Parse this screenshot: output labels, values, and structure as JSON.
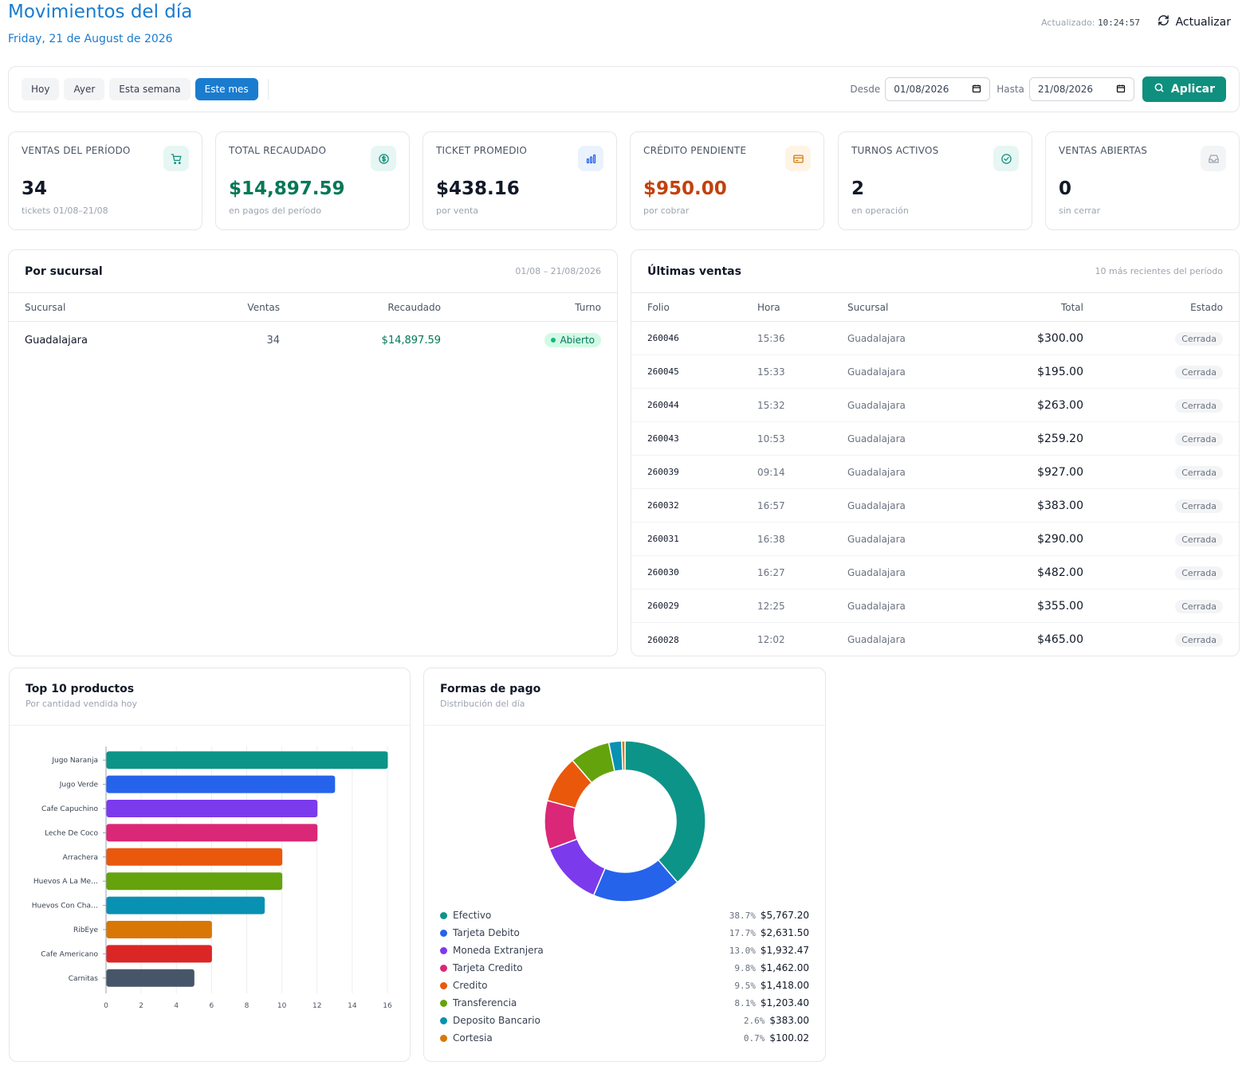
{
  "header": {
    "title": "Movimientos del día",
    "date": "Friday, 21 de August de 2026",
    "updated_label": "Actualizado:",
    "updated_time": "10:24:57",
    "refresh_label": "Actualizar"
  },
  "filters": {
    "presets": [
      {
        "label": "Hoy",
        "active": false
      },
      {
        "label": "Ayer",
        "active": false
      },
      {
        "label": "Esta semana",
        "active": false
      },
      {
        "label": "Este mes",
        "active": true
      }
    ],
    "from_label": "Desde",
    "from_value": "01/08/2026",
    "to_label": "Hasta",
    "to_value": "21/08/2026",
    "apply_label": "Aplicar"
  },
  "kpis": [
    {
      "label": "VENTAS DEL PERÍODO",
      "value": "34",
      "sub": "tickets 01/08–21/08",
      "icon": "cart-icon",
      "color": "#111827",
      "icon_bg": "#e6f6f3",
      "icon_color": "#0f8f7e"
    },
    {
      "label": "TOTAL RECAUDADO",
      "value": "$14,897.59",
      "sub": "en pagos del período",
      "icon": "dollar-icon",
      "color": "#047857",
      "icon_bg": "#e6f6f3",
      "icon_color": "#0f8f7e"
    },
    {
      "label": "TICKET PROMEDIO",
      "value": "$438.16",
      "sub": "por venta",
      "icon": "bar-chart-icon",
      "color": "#111827",
      "icon_bg": "#eaf2fd",
      "icon_color": "#2563eb"
    },
    {
      "label": "CRÉDITO PENDIENTE",
      "value": "$950.00",
      "sub": "por cobrar",
      "icon": "credit-card-icon",
      "color": "#c2410c",
      "icon_bg": "#fef4e6",
      "icon_color": "#d97706"
    },
    {
      "label": "TURNOS ACTIVOS",
      "value": "2",
      "sub": "en operación",
      "icon": "check-circle-icon",
      "color": "#111827",
      "icon_bg": "#e6f6f3",
      "icon_color": "#0f8f7e"
    },
    {
      "label": "VENTAS ABIERTAS",
      "value": "0",
      "sub": "sin cerrar",
      "icon": "inbox-icon",
      "color": "#111827",
      "icon_bg": "#f3f4f6",
      "icon_color": "#9ca3af"
    }
  ],
  "branches": {
    "title": "Por sucursal",
    "range": "01/08 – 21/08/2026",
    "columns": [
      "Sucursal",
      "Ventas",
      "Recaudado",
      "Turno"
    ],
    "rows": [
      {
        "branch": "Guadalajara",
        "sales": "34",
        "collected": "$14,897.59",
        "shift": "Abierto"
      }
    ]
  },
  "recent_sales": {
    "title": "Últimas ventas",
    "meta": "10 más recientes del período",
    "columns": [
      "Folio",
      "Hora",
      "Sucursal",
      "Total",
      "Estado"
    ],
    "rows": [
      {
        "folio": "260046",
        "time": "15:36",
        "branch": "Guadalajara",
        "total": "$300.00",
        "status": "Cerrada"
      },
      {
        "folio": "260045",
        "time": "15:33",
        "branch": "Guadalajara",
        "total": "$195.00",
        "status": "Cerrada"
      },
      {
        "folio": "260044",
        "time": "15:32",
        "branch": "Guadalajara",
        "total": "$263.00",
        "status": "Cerrada"
      },
      {
        "folio": "260043",
        "time": "10:53",
        "branch": "Guadalajara",
        "total": "$259.20",
        "status": "Cerrada"
      },
      {
        "folio": "260039",
        "time": "09:14",
        "branch": "Guadalajara",
        "total": "$927.00",
        "status": "Cerrada"
      },
      {
        "folio": "260032",
        "time": "16:57",
        "branch": "Guadalajara",
        "total": "$383.00",
        "status": "Cerrada"
      },
      {
        "folio": "260031",
        "time": "16:38",
        "branch": "Guadalajara",
        "total": "$290.00",
        "status": "Cerrada"
      },
      {
        "folio": "260030",
        "time": "16:27",
        "branch": "Guadalajara",
        "total": "$482.00",
        "status": "Cerrada"
      },
      {
        "folio": "260029",
        "time": "12:25",
        "branch": "Guadalajara",
        "total": "$355.00",
        "status": "Cerrada"
      },
      {
        "folio": "260028",
        "time": "12:02",
        "branch": "Guadalajara",
        "total": "$465.00",
        "status": "Cerrada"
      }
    ]
  },
  "top_products": {
    "title": "Top 10 productos",
    "subtitle": "Por cantidad vendida hoy"
  },
  "payments": {
    "title": "Formas de pago",
    "subtitle": "Distribución del día"
  },
  "chart_data": [
    {
      "type": "bar",
      "orientation": "horizontal",
      "categories": [
        "Jugo Naranja",
        "Jugo Verde",
        "Cafe Capuchino",
        "Leche De Coco",
        "Arrachera",
        "Huevos A La Me…",
        "Huevos Con Cha…",
        "RibEye",
        "Cafe Americano",
        "Carnitas"
      ],
      "values": [
        16,
        13,
        12,
        12,
        10,
        10,
        9,
        6,
        6,
        5
      ],
      "colors": [
        "#0d9488",
        "#2563eb",
        "#7c3aed",
        "#db2777",
        "#ea580c",
        "#65a30d",
        "#0891b2",
        "#d97706",
        "#dc2626",
        "#475569"
      ],
      "xlim": [
        0,
        16
      ],
      "xticks": [
        0,
        2,
        4,
        6,
        8,
        10,
        12,
        14,
        16
      ],
      "grid": true
    },
    {
      "type": "pie",
      "donut": true,
      "labels": [
        "Efectivo",
        "Tarjeta Debito",
        "Moneda Extranjera",
        "Tarjeta Credito",
        "Credito",
        "Transferencia",
        "Deposito Bancario",
        "Cortesia"
      ],
      "percents": [
        "38.7%",
        "17.7%",
        "13.0%",
        "9.8%",
        "9.5%",
        "8.1%",
        "2.6%",
        "0.7%"
      ],
      "amounts": [
        "$5,767.20",
        "$2,631.50",
        "$1,932.47",
        "$1,462.00",
        "$1,418.00",
        "$1,203.40",
        "$383.00",
        "$100.02"
      ],
      "values": [
        5767.2,
        2631.5,
        1932.47,
        1462.0,
        1418.0,
        1203.4,
        383.0,
        100.02
      ],
      "colors": [
        "#0d9488",
        "#2563eb",
        "#7c3aed",
        "#db2777",
        "#ea580c",
        "#65a30d",
        "#0891b2",
        "#d97706"
      ]
    }
  ]
}
